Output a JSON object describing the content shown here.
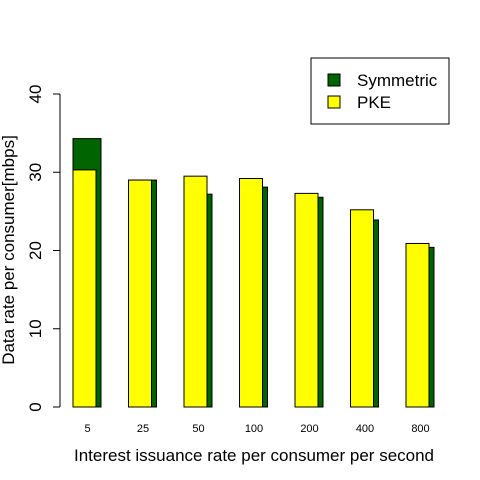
{
  "chart_data": {
    "type": "bar",
    "title": "",
    "xlabel": "Interest issuance rate per consumer per second",
    "ylabel": "Data rate per consumer[mbps]",
    "categories": [
      "5",
      "25",
      "50",
      "100",
      "200",
      "400",
      "800"
    ],
    "series": [
      {
        "name": "Symmetric",
        "color": "#006400",
        "values": [
          34.3,
          29.0,
          27.2,
          28.1,
          26.8,
          23.9,
          20.4
        ]
      },
      {
        "name": "PKE",
        "color": "#ffff00",
        "values": [
          30.3,
          29.0,
          29.5,
          29.2,
          27.3,
          25.2,
          20.9
        ]
      }
    ],
    "ylim": [
      0,
      40
    ],
    "yticks": [
      "0",
      "10",
      "20",
      "30",
      "40"
    ],
    "grid": false,
    "legend_position": "top-right"
  }
}
